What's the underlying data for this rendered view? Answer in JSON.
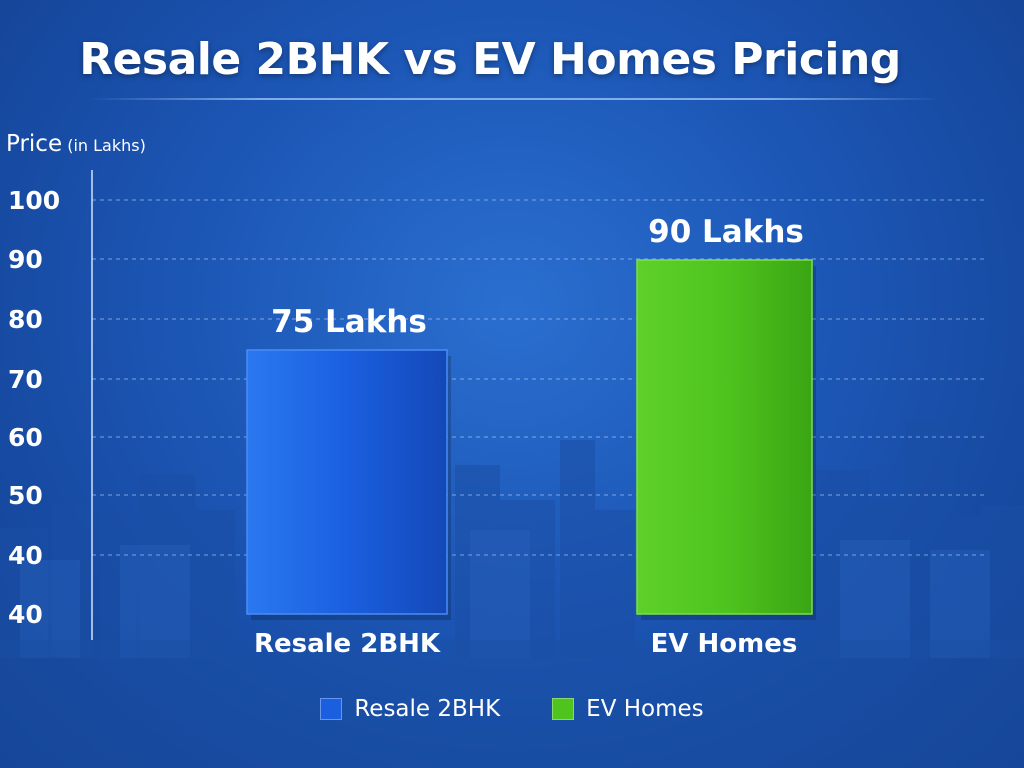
{
  "chart_data": {
    "type": "bar",
    "title": "Resale 2BHK vs EV Homes Pricing",
    "ylabel_main": "Price",
    "ylabel_unit": "(in Lakhs)",
    "xlabel": "",
    "categories": [
      "Resale 2BHK",
      "EV Homes"
    ],
    "values": [
      75,
      90
    ],
    "data_labels": [
      "75 Lakhs",
      "90 Lakhs"
    ],
    "colors": [
      "#1a5fe0",
      "#4fc41e"
    ],
    "yticks": [
      "100",
      "90",
      "80",
      "70",
      "60",
      "50",
      "40",
      "40"
    ],
    "grid": true,
    "legend": {
      "position": "bottom",
      "entries": [
        "Resale 2BHK",
        "EV Homes"
      ]
    }
  }
}
